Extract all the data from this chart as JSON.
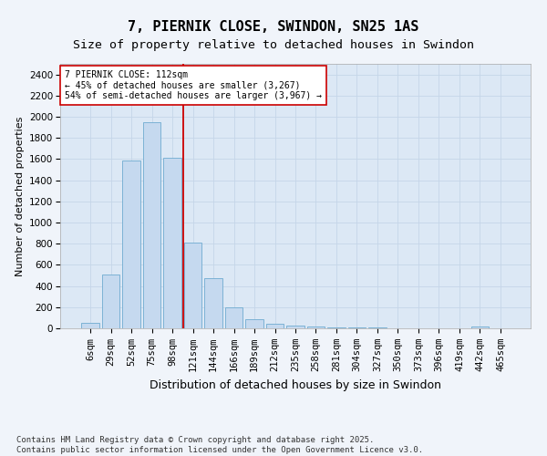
{
  "title": "7, PIERNIK CLOSE, SWINDON, SN25 1AS",
  "subtitle": "Size of property relative to detached houses in Swindon",
  "xlabel": "Distribution of detached houses by size in Swindon",
  "ylabel": "Number of detached properties",
  "bar_color": "#c5d9ef",
  "bar_edge_color": "#6fabd0",
  "categories": [
    "6sqm",
    "29sqm",
    "52sqm",
    "75sqm",
    "98sqm",
    "121sqm",
    "144sqm",
    "166sqm",
    "189sqm",
    "212sqm",
    "235sqm",
    "258sqm",
    "281sqm",
    "304sqm",
    "327sqm",
    "350sqm",
    "373sqm",
    "396sqm",
    "419sqm",
    "442sqm",
    "465sqm"
  ],
  "values": [
    55,
    510,
    1590,
    1950,
    1610,
    810,
    475,
    195,
    90,
    45,
    30,
    20,
    10,
    5,
    5,
    2,
    0,
    0,
    0,
    20,
    0
  ],
  "vline_pos": 4.52,
  "vline_color": "#cc0000",
  "annotation_text": "7 PIERNIK CLOSE: 112sqm\n← 45% of detached houses are smaller (3,267)\n54% of semi-detached houses are larger (3,967) →",
  "annotation_box_color": "#ffffff",
  "annotation_box_edge": "#cc0000",
  "ylim": [
    0,
    2500
  ],
  "yticks": [
    0,
    200,
    400,
    600,
    800,
    1000,
    1200,
    1400,
    1600,
    1800,
    2000,
    2200,
    2400
  ],
  "grid_color": "#c5d5e8",
  "fig_bg_color": "#f0f4fa",
  "ax_bg_color": "#dce8f5",
  "footer": "Contains HM Land Registry data © Crown copyright and database right 2025.\nContains public sector information licensed under the Open Government Licence v3.0.",
  "title_fontsize": 11,
  "subtitle_fontsize": 9.5,
  "xlabel_fontsize": 9,
  "ylabel_fontsize": 8,
  "tick_fontsize": 7.5,
  "footer_fontsize": 6.5
}
